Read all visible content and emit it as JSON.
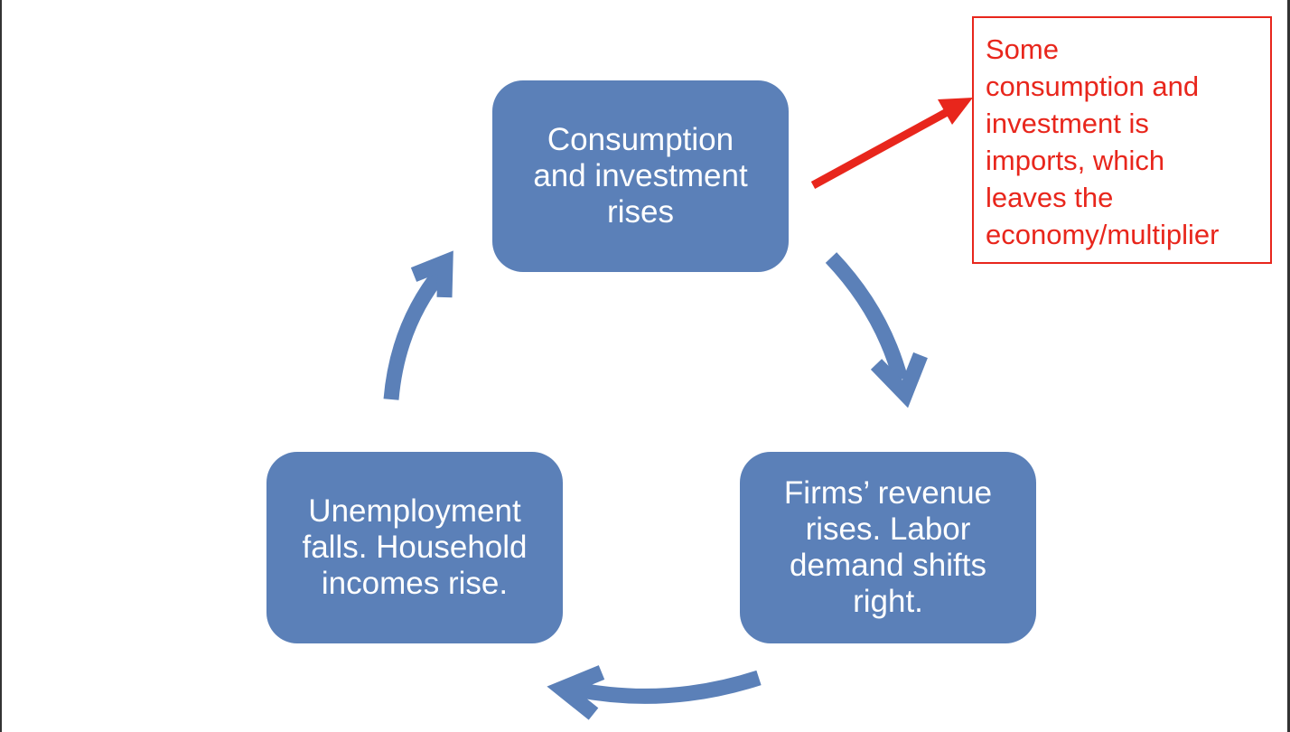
{
  "colors": {
    "box_fill": "#5b80b8",
    "arrow": "#5b80b8",
    "note": "#e8261c",
    "box_text": "#ffffff"
  },
  "diagram": {
    "boxes": [
      {
        "id": "consumption",
        "lines": [
          "Consumption",
          "and investment",
          "rises"
        ]
      },
      {
        "id": "revenue",
        "lines": [
          "Firms’ revenue",
          "rises. Labor",
          "demand shifts",
          "right."
        ]
      },
      {
        "id": "unemployment",
        "lines": [
          "Unemployment",
          "falls. Household",
          "incomes rise."
        ]
      }
    ],
    "note": {
      "lines": [
        "Some",
        "consumption and",
        "investment is",
        "imports, which",
        "leaves the",
        "economy/multiplier"
      ]
    }
  }
}
